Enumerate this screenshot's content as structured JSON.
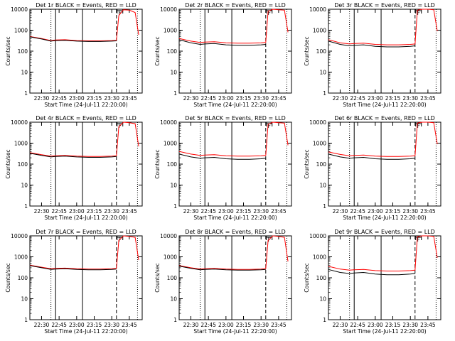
{
  "figure": {
    "colors": {
      "events": "#000000",
      "lld": "#ff0000",
      "axes": "#000000",
      "background": "#ffffff"
    }
  },
  "chart_data": [
    {
      "type": "line",
      "title": "Det 1r BLACK = Events, RED = LLD",
      "xlabel": "Start Time (24-Jul-11 22:20:00)",
      "ylabel": "Counts/sec",
      "xlim": [
        "22:20",
        "23:56"
      ],
      "ylim": [
        1,
        10000
      ],
      "yscale": "log",
      "x_ticks": [
        "22:30",
        "22:45",
        "23:00",
        "23:15",
        "23:30",
        "23:45"
      ],
      "y_ticks": [
        "1",
        "10",
        "100",
        "1000",
        "10000"
      ],
      "vlines": {
        "dotted": [
          "22:38",
          "23:52"
        ],
        "solid": [
          "22:42",
          "23:05"
        ],
        "dashed": [
          "23:34"
        ]
      },
      "marker": {
        "label": "F",
        "x": "23:37"
      },
      "series": [
        {
          "color": "#ff0000",
          "x": [
            "22:20",
            "22:30",
            "22:38",
            "22:42",
            "22:50",
            "23:00",
            "23:10",
            "23:20",
            "23:30",
            "23:34",
            "23:36",
            "23:40",
            "23:45",
            "23:50",
            "23:53"
          ],
          "values": [
            500,
            400,
            320,
            340,
            350,
            320,
            310,
            310,
            320,
            330,
            5000,
            9500,
            9000,
            7000,
            600
          ]
        },
        {
          "color": "#000000",
          "x": [
            "22:20",
            "22:30",
            "22:38",
            "22:42",
            "22:50",
            "23:00",
            "23:10",
            "23:20",
            "23:30",
            "23:34"
          ],
          "values": [
            480,
            380,
            300,
            320,
            330,
            300,
            290,
            290,
            300,
            310
          ]
        }
      ]
    },
    {
      "type": "line",
      "title": "Det 2r BLACK = Events, RED = LLD",
      "xlabel": "Start Time (24-Jul-11 22:20:00)",
      "ylabel": "Counts/sec",
      "xlim": [
        "22:20",
        "23:56"
      ],
      "ylim": [
        1,
        10000
      ],
      "yscale": "log",
      "x_ticks": [
        "22:30",
        "22:45",
        "23:00",
        "23:15",
        "23:30",
        "23:45"
      ],
      "y_ticks": [
        "1",
        "10",
        "100",
        "1000",
        "10000"
      ],
      "vlines": {
        "dotted": [
          "22:38",
          "23:52"
        ],
        "solid": [
          "22:42",
          "23:05"
        ],
        "dashed": [
          "23:34"
        ]
      },
      "marker": {
        "label": "F",
        "x": "23:37"
      },
      "series": [
        {
          "color": "#ff0000",
          "x": [
            "22:20",
            "22:30",
            "22:38",
            "22:42",
            "22:50",
            "23:00",
            "23:10",
            "23:20",
            "23:30",
            "23:34",
            "23:36",
            "23:40",
            "23:45",
            "23:50",
            "23:53"
          ],
          "values": [
            400,
            300,
            260,
            270,
            280,
            250,
            240,
            240,
            250,
            260,
            8000,
            10000,
            9500,
            9000,
            800
          ]
        },
        {
          "color": "#000000",
          "x": [
            "22:20",
            "22:30",
            "22:38",
            "22:42",
            "22:50",
            "23:00",
            "23:10",
            "23:20",
            "23:30",
            "23:34"
          ],
          "values": [
            350,
            250,
            210,
            220,
            230,
            200,
            190,
            190,
            200,
            210
          ]
        }
      ]
    },
    {
      "type": "line",
      "title": "Det 3r BLACK = Events, RED = LLD",
      "xlabel": "Start Time (24-Jul-11 22:20:00)",
      "ylabel": "Counts/sec",
      "xlim": [
        "22:20",
        "23:56"
      ],
      "ylim": [
        1,
        10000
      ],
      "yscale": "log",
      "x_ticks": [
        "22:30",
        "22:45",
        "23:00",
        "23:15",
        "23:30",
        "23:45"
      ],
      "y_ticks": [
        "1",
        "10",
        "100",
        "1000",
        "10000"
      ],
      "vlines": {
        "dotted": [
          "22:38",
          "23:52"
        ],
        "solid": [
          "22:42",
          "23:05"
        ],
        "dashed": [
          "23:34"
        ]
      },
      "marker": {
        "label": "F",
        "x": "23:37"
      },
      "series": [
        {
          "color": "#ff0000",
          "x": [
            "22:20",
            "22:30",
            "22:38",
            "22:42",
            "22:50",
            "23:00",
            "23:10",
            "23:20",
            "23:30",
            "23:34",
            "23:36",
            "23:40",
            "23:45",
            "23:50",
            "23:53"
          ],
          "values": [
            350,
            250,
            220,
            230,
            240,
            210,
            200,
            200,
            210,
            220,
            9000,
            10000,
            10000,
            9500,
            900
          ]
        },
        {
          "color": "#000000",
          "x": [
            "22:20",
            "22:30",
            "22:38",
            "22:42",
            "22:50",
            "23:00",
            "23:10",
            "23:20",
            "23:30",
            "23:34"
          ],
          "values": [
            300,
            210,
            180,
            190,
            200,
            170,
            160,
            160,
            170,
            180
          ]
        }
      ]
    },
    {
      "type": "line",
      "title": "Det 4r BLACK = Events, RED = LLD",
      "xlabel": "Start Time (24-Jul-11 22:20:00)",
      "ylabel": "Counts/sec",
      "xlim": [
        "22:20",
        "23:56"
      ],
      "ylim": [
        1,
        10000
      ],
      "yscale": "log",
      "x_ticks": [
        "22:30",
        "22:45",
        "23:00",
        "23:15",
        "23:30",
        "23:45"
      ],
      "y_ticks": [
        "1",
        "10",
        "100",
        "1000",
        "10000"
      ],
      "vlines": {
        "dotted": [
          "22:38",
          "23:52"
        ],
        "solid": [
          "22:42",
          "23:05"
        ],
        "dashed": [
          "23:34"
        ]
      },
      "marker": {
        "label": "F",
        "x": "23:37"
      },
      "series": [
        {
          "color": "#ff0000",
          "x": [
            "22:20",
            "22:30",
            "22:38",
            "22:42",
            "22:50",
            "23:00",
            "23:10",
            "23:20",
            "23:30",
            "23:34",
            "23:36",
            "23:40",
            "23:45",
            "23:50",
            "23:53"
          ],
          "values": [
            350,
            280,
            240,
            250,
            260,
            240,
            230,
            230,
            240,
            250,
            6000,
            10000,
            9500,
            8500,
            700
          ]
        },
        {
          "color": "#000000",
          "x": [
            "22:20",
            "22:30",
            "22:38",
            "22:42",
            "22:50",
            "23:00",
            "23:10",
            "23:20",
            "23:30",
            "23:34"
          ],
          "values": [
            330,
            260,
            220,
            230,
            240,
            220,
            210,
            210,
            220,
            230
          ]
        }
      ]
    },
    {
      "type": "line",
      "title": "Det 5r BLACK = Events, RED = LLD",
      "xlabel": "Start Time (24-Jul-11 22:20:00)",
      "ylabel": "Counts/sec",
      "xlim": [
        "22:20",
        "23:56"
      ],
      "ylim": [
        1,
        10000
      ],
      "yscale": "log",
      "x_ticks": [
        "22:30",
        "22:45",
        "23:00",
        "23:15",
        "23:30",
        "23:45"
      ],
      "y_ticks": [
        "1",
        "10",
        "100",
        "1000",
        "10000"
      ],
      "vlines": {
        "dotted": [
          "22:38",
          "23:52"
        ],
        "solid": [
          "22:42",
          "23:05"
        ],
        "dashed": [
          "23:34"
        ]
      },
      "marker": {
        "label": "F",
        "x": "23:37"
      },
      "series": [
        {
          "color": "#ff0000",
          "x": [
            "22:20",
            "22:30",
            "22:38",
            "22:42",
            "22:50",
            "23:00",
            "23:10",
            "23:20",
            "23:30",
            "23:34",
            "23:36",
            "23:40",
            "23:45",
            "23:50",
            "23:53"
          ],
          "values": [
            400,
            300,
            260,
            270,
            280,
            250,
            240,
            240,
            250,
            260,
            8000,
            10000,
            9500,
            9000,
            800
          ]
        },
        {
          "color": "#000000",
          "x": [
            "22:20",
            "22:30",
            "22:38",
            "22:42",
            "22:50",
            "23:00",
            "23:10",
            "23:20",
            "23:30",
            "23:34"
          ],
          "values": [
            300,
            220,
            190,
            200,
            210,
            180,
            170,
            170,
            180,
            190
          ]
        }
      ]
    },
    {
      "type": "line",
      "title": "Det 6r BLACK = Events, RED = LLD",
      "xlabel": "Start Time (24-Jul-11 22:20:00)",
      "ylabel": "Counts/sec",
      "xlim": [
        "22:20",
        "23:56"
      ],
      "ylim": [
        1,
        10000
      ],
      "yscale": "log",
      "x_ticks": [
        "22:30",
        "22:45",
        "23:00",
        "23:15",
        "23:30",
        "23:45"
      ],
      "y_ticks": [
        "1",
        "10",
        "100",
        "1000",
        "10000"
      ],
      "vlines": {
        "dotted": [
          "22:38",
          "23:52"
        ],
        "solid": [
          "22:42",
          "23:05"
        ],
        "dashed": [
          "23:34"
        ]
      },
      "marker": {
        "label": "F",
        "x": "23:37"
      },
      "series": [
        {
          "color": "#ff0000",
          "x": [
            "22:20",
            "22:30",
            "22:38",
            "22:42",
            "22:50",
            "23:00",
            "23:10",
            "23:20",
            "23:30",
            "23:34",
            "23:36",
            "23:40",
            "23:45",
            "23:50",
            "23:53"
          ],
          "values": [
            380,
            290,
            250,
            260,
            270,
            240,
            230,
            230,
            240,
            250,
            9000,
            10000,
            10000,
            9500,
            900
          ]
        },
        {
          "color": "#000000",
          "x": [
            "22:20",
            "22:30",
            "22:38",
            "22:42",
            "22:50",
            "23:00",
            "23:10",
            "23:20",
            "23:30",
            "23:34"
          ],
          "values": [
            300,
            220,
            190,
            200,
            210,
            180,
            170,
            170,
            180,
            190
          ]
        }
      ]
    },
    {
      "type": "line",
      "title": "Det 7r BLACK = Events, RED = LLD",
      "xlabel": "Start Time (24-Jul-11 22:20:00)",
      "ylabel": "Counts/sec",
      "xlim": [
        "22:20",
        "23:56"
      ],
      "ylim": [
        1,
        10000
      ],
      "yscale": "log",
      "x_ticks": [
        "22:30",
        "22:45",
        "23:00",
        "23:15",
        "23:30",
        "23:45"
      ],
      "y_ticks": [
        "1",
        "10",
        "100",
        "1000",
        "10000"
      ],
      "vlines": {
        "dotted": [
          "22:38",
          "23:52"
        ],
        "solid": [
          "22:42",
          "23:05"
        ],
        "dashed": [
          "23:34"
        ]
      },
      "marker": {
        "label": "F",
        "x": "23:37"
      },
      "series": [
        {
          "color": "#ff0000",
          "x": [
            "22:20",
            "22:30",
            "22:38",
            "22:42",
            "22:50",
            "23:00",
            "23:10",
            "23:20",
            "23:30",
            "23:34",
            "23:36",
            "23:40",
            "23:45",
            "23:50",
            "23:53"
          ],
          "values": [
            400,
            320,
            270,
            280,
            290,
            270,
            260,
            260,
            270,
            280,
            6000,
            10000,
            9500,
            8500,
            700
          ]
        },
        {
          "color": "#000000",
          "x": [
            "22:20",
            "22:30",
            "22:38",
            "22:42",
            "22:50",
            "23:00",
            "23:10",
            "23:20",
            "23:30",
            "23:34"
          ],
          "values": [
            380,
            300,
            250,
            260,
            270,
            250,
            240,
            240,
            250,
            260
          ]
        }
      ]
    },
    {
      "type": "line",
      "title": "Det 8r BLACK = Events, RED = LLD",
      "xlabel": "Start Time (24-Jul-11 22:20:00)",
      "ylabel": "Counts/sec",
      "xlim": [
        "22:20",
        "23:56"
      ],
      "ylim": [
        1,
        10000
      ],
      "yscale": "log",
      "x_ticks": [
        "22:30",
        "22:45",
        "23:00",
        "23:15",
        "23:30",
        "23:45"
      ],
      "y_ticks": [
        "1",
        "10",
        "100",
        "1000",
        "10000"
      ],
      "vlines": {
        "dotted": [
          "22:38",
          "23:52"
        ],
        "solid": [
          "22:42",
          "23:05"
        ],
        "dashed": [
          "23:34"
        ]
      },
      "marker": {
        "label": "F",
        "x": "23:37"
      },
      "series": [
        {
          "color": "#ff0000",
          "x": [
            "22:20",
            "22:30",
            "22:38",
            "22:42",
            "22:50",
            "23:00",
            "23:10",
            "23:20",
            "23:30",
            "23:34",
            "23:36",
            "23:40",
            "23:45",
            "23:50",
            "23:53"
          ],
          "values": [
            380,
            300,
            260,
            270,
            280,
            260,
            250,
            250,
            260,
            270,
            6000,
            10000,
            9500,
            8500,
            600
          ]
        },
        {
          "color": "#000000",
          "x": [
            "22:20",
            "22:30",
            "22:38",
            "22:42",
            "22:50",
            "23:00",
            "23:10",
            "23:20",
            "23:30",
            "23:34"
          ],
          "values": [
            360,
            280,
            240,
            250,
            260,
            240,
            230,
            230,
            240,
            250
          ]
        }
      ]
    },
    {
      "type": "line",
      "title": "Det 9r BLACK = Events, RED = LLD",
      "xlabel": "Start Time (24-Jul-11 22:20:00)",
      "ylabel": "Counts/sec",
      "xlim": [
        "22:20",
        "23:56"
      ],
      "ylim": [
        1,
        10000
      ],
      "yscale": "log",
      "x_ticks": [
        "22:30",
        "22:45",
        "23:00",
        "23:15",
        "23:30",
        "23:45"
      ],
      "y_ticks": [
        "1",
        "10",
        "100",
        "1000",
        "10000"
      ],
      "vlines": {
        "dotted": [
          "22:38",
          "23:52"
        ],
        "solid": [
          "22:42",
          "23:05"
        ],
        "dashed": [
          "23:34"
        ]
      },
      "marker": {
        "label": "F",
        "x": "23:37"
      },
      "series": [
        {
          "color": "#ff0000",
          "x": [
            "22:20",
            "22:30",
            "22:38",
            "22:42",
            "22:50",
            "23:00",
            "23:10",
            "23:20",
            "23:30",
            "23:34",
            "23:36",
            "23:40",
            "23:45",
            "23:50",
            "23:53"
          ],
          "values": [
            350,
            260,
            230,
            240,
            250,
            220,
            210,
            210,
            220,
            230,
            9000,
            10000,
            10000,
            9500,
            900
          ]
        },
        {
          "color": "#000000",
          "x": [
            "22:20",
            "22:30",
            "22:38",
            "22:42",
            "22:50",
            "23:00",
            "23:10",
            "23:20",
            "23:30",
            "23:34"
          ],
          "values": [
            250,
            180,
            160,
            170,
            180,
            150,
            140,
            140,
            150,
            160
          ]
        }
      ]
    }
  ]
}
